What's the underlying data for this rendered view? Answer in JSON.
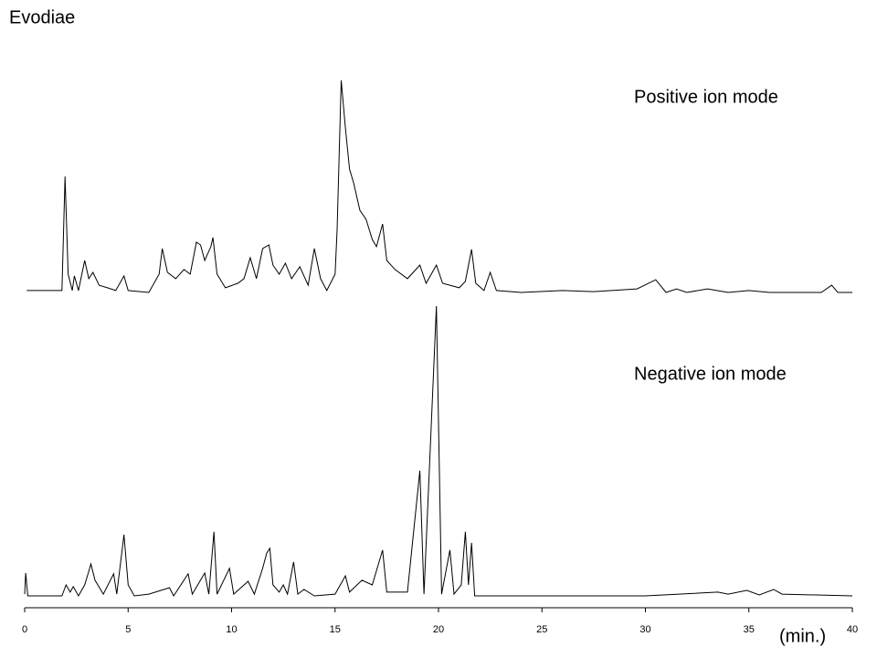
{
  "chart_data": {
    "type": "line",
    "title": "Evodiae",
    "x_label": "(min.)",
    "xlim": [
      0,
      40
    ],
    "xticks": [
      0,
      5,
      10,
      15,
      20,
      25,
      30,
      35,
      40
    ],
    "ylim": [
      0,
      100
    ],
    "series": [
      {
        "name": "Positive ion mode",
        "color": "#000000",
        "x": [
          0.1,
          1.8,
          1.95,
          2.1,
          2.3,
          2.4,
          2.6,
          2.9,
          3.1,
          3.3,
          3.6,
          4.0,
          4.4,
          4.8,
          5.0,
          6.0,
          6.5,
          6.65,
          6.9,
          7.3,
          7.7,
          8.0,
          8.3,
          8.5,
          8.7,
          9.0,
          9.1,
          9.3,
          9.7,
          10.3,
          10.6,
          10.9,
          11.2,
          11.5,
          11.8,
          12.0,
          12.3,
          12.6,
          12.9,
          13.3,
          13.7,
          14.0,
          14.3,
          14.6,
          15.0,
          15.1,
          15.3,
          15.5,
          15.7,
          15.9,
          16.2,
          16.5,
          16.8,
          17.0,
          17.3,
          17.5,
          17.9,
          18.5,
          19.1,
          19.4,
          19.9,
          20.2,
          21.0,
          21.3,
          21.6,
          21.8,
          22.2,
          22.5,
          22.8,
          24,
          26,
          27.5,
          29.6,
          30.5,
          31.0,
          31.5,
          32,
          33,
          34,
          35,
          36,
          38.5,
          39.0,
          39.3,
          40
        ],
        "values": [
          0.9,
          0.9,
          54.7,
          8.6,
          0.9,
          7.8,
          0.9,
          15.1,
          6.5,
          9.5,
          3.4,
          2.2,
          0.9,
          7.8,
          0.9,
          0,
          8.6,
          20.7,
          9.5,
          6.5,
          10.8,
          8.6,
          23.7,
          22.4,
          15.1,
          21.6,
          25.9,
          8.6,
          2.2,
          4.3,
          6.5,
          16.4,
          6.5,
          20.7,
          22.4,
          12.9,
          8.6,
          13.8,
          6.5,
          12.1,
          3.4,
          20.7,
          6.5,
          0.9,
          8.6,
          29.3,
          100,
          77.6,
          58.2,
          51.7,
          38.8,
          34.5,
          25.0,
          21.6,
          32.3,
          15.1,
          10.8,
          6.5,
          12.9,
          4.3,
          12.9,
          4.3,
          2.2,
          5.2,
          20.3,
          4.3,
          0.9,
          9.5,
          0.9,
          0,
          0.9,
          0.4,
          1.7,
          6.0,
          0,
          1.7,
          0,
          1.7,
          0,
          0.9,
          0,
          0,
          3.4,
          0,
          0
        ]
      },
      {
        "name": "Negative ion mode",
        "color": "#000000",
        "x": [
          0,
          0.05,
          0.15,
          1.8,
          2.0,
          2.2,
          2.35,
          2.6,
          2.9,
          3.1,
          3.2,
          3.4,
          3.8,
          4.3,
          4.45,
          4.8,
          5.0,
          5.3,
          6.0,
          7.0,
          7.2,
          7.9,
          8.1,
          8.7,
          8.9,
          9.15,
          9.3,
          9.9,
          10.1,
          10.8,
          11.1,
          11.5,
          11.7,
          11.85,
          12.0,
          12.3,
          12.5,
          12.7,
          13.0,
          13.2,
          13.5,
          14.0,
          15.0,
          15.5,
          15.7,
          16.3,
          16.8,
          17.3,
          17.5,
          18.5,
          19.1,
          19.3,
          19.9,
          20.15,
          20.55,
          20.75,
          21.1,
          21.3,
          21.45,
          21.6,
          21.75,
          23,
          27,
          30,
          33.5,
          34.0,
          34.9,
          35.5,
          36.2,
          36.6,
          40
        ],
        "values": [
          0.6,
          7.9,
          0,
          0,
          3.8,
          1.3,
          3.2,
          0,
          3.8,
          8.5,
          11.0,
          5.4,
          0.6,
          7.6,
          0.6,
          21.1,
          3.8,
          0,
          0.6,
          2.8,
          0,
          7.6,
          0.6,
          7.9,
          0.6,
          22.1,
          0.6,
          9.5,
          0.6,
          5.0,
          0.6,
          9.5,
          14.8,
          16.4,
          3.8,
          1.3,
          3.8,
          0.6,
          11.7,
          0.6,
          2.2,
          0,
          0.6,
          6.9,
          1.3,
          5.4,
          3.8,
          15.8,
          1.3,
          1.3,
          43.2,
          0.6,
          100,
          0.6,
          15.8,
          0.6,
          3.8,
          22.1,
          3.8,
          18.3,
          0,
          0,
          0,
          0,
          1.3,
          0.6,
          1.9,
          0.3,
          2.2,
          0.6,
          0
        ]
      }
    ]
  }
}
